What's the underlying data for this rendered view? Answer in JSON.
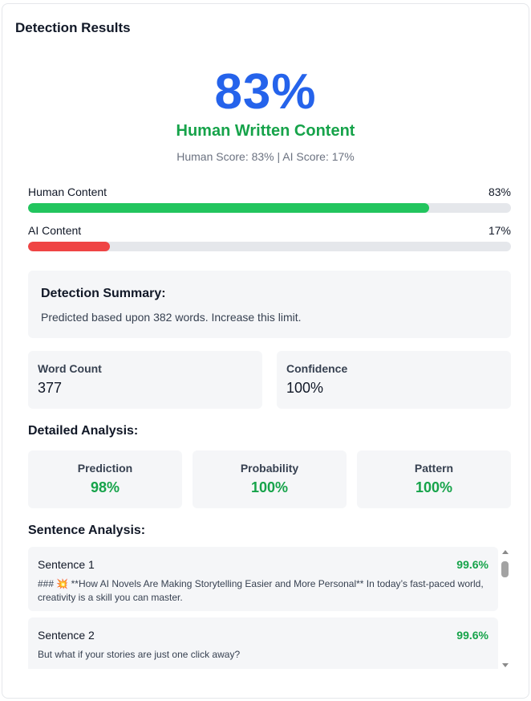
{
  "title": "Detection Results",
  "score": {
    "big": "83%",
    "verdict": "Human Written Content",
    "line": "Human Score: 83% | AI Score: 17%"
  },
  "bars": [
    {
      "label": "Human Content",
      "pct_text": "83%",
      "value": 0.83,
      "color": "#22c55e"
    },
    {
      "label": "AI Content",
      "pct_text": "17%",
      "value": 0.17,
      "color": "#ef4444"
    }
  ],
  "summary": {
    "heading": "Detection Summary:",
    "text": "Predicted based upon 382 words. Increase this limit."
  },
  "stats": [
    {
      "label": "Word Count",
      "value": "377"
    },
    {
      "label": "Confidence",
      "value": "100%"
    }
  ],
  "detailed": {
    "heading": "Detailed Analysis:",
    "metrics": [
      {
        "label": "Prediction",
        "value": "98%"
      },
      {
        "label": "Probability",
        "value": "100%"
      },
      {
        "label": "Pattern",
        "value": "100%"
      }
    ]
  },
  "sentences": {
    "heading": "Sentence Analysis:",
    "items": [
      {
        "name": "Sentence 1",
        "pct": "99.6%",
        "text": "### 💥 **How AI Novels Are Making Storytelling Easier and More Personal** In today’s fast-paced world, creativity is a skill you can master."
      },
      {
        "name": "Sentence 2",
        "pct": "99.6%",
        "text": "But what if your stories are just one click away?"
      }
    ]
  },
  "icons": {
    "scroll_up": "chevron-up-icon",
    "scroll_down": "chevron-down-icon"
  }
}
